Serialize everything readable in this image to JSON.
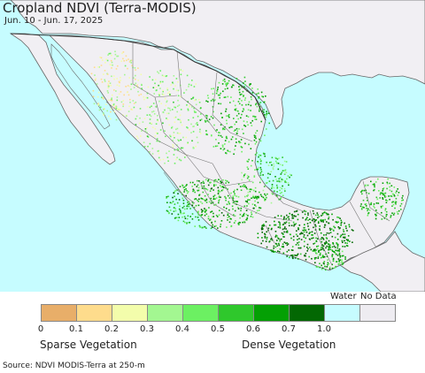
{
  "title": "Cropland NDVI (Terra-MODIS)",
  "subtitle": "Jun. 10 - Jun. 17, 2025",
  "legend": {
    "water_label": "Water",
    "nodata_label": "No Data",
    "ticks": [
      "0",
      "0.1",
      "0.2",
      "0.3",
      "0.4",
      "0.5",
      "0.6",
      "0.7",
      "1.0"
    ],
    "swatches": [
      {
        "name": "swatch-0-0.1",
        "color": "#e8ae69"
      },
      {
        "name": "swatch-0.1-0.2",
        "color": "#fedc8c"
      },
      {
        "name": "swatch-0.2-0.3",
        "color": "#f3fdab"
      },
      {
        "name": "swatch-0.3-0.4",
        "color": "#a3f791"
      },
      {
        "name": "swatch-0.4-0.5",
        "color": "#6cf062"
      },
      {
        "name": "swatch-0.5-0.6",
        "color": "#2fc82c"
      },
      {
        "name": "swatch-0.6-0.7",
        "color": "#04a004"
      },
      {
        "name": "swatch-0.7-1.0",
        "color": "#036803"
      },
      {
        "name": "swatch-water",
        "color": "#c6fcff"
      },
      {
        "name": "swatch-nodata",
        "color": "#eeecf1"
      }
    ],
    "sparse_label": "Sparse Vegetation",
    "dense_label": "Dense Vegetation"
  },
  "source": "Source: NDVI MODIS-Terra at 250-m",
  "colors": {
    "ocean": "#c6fcff",
    "land": "#f1eff3",
    "border": "#555555"
  }
}
